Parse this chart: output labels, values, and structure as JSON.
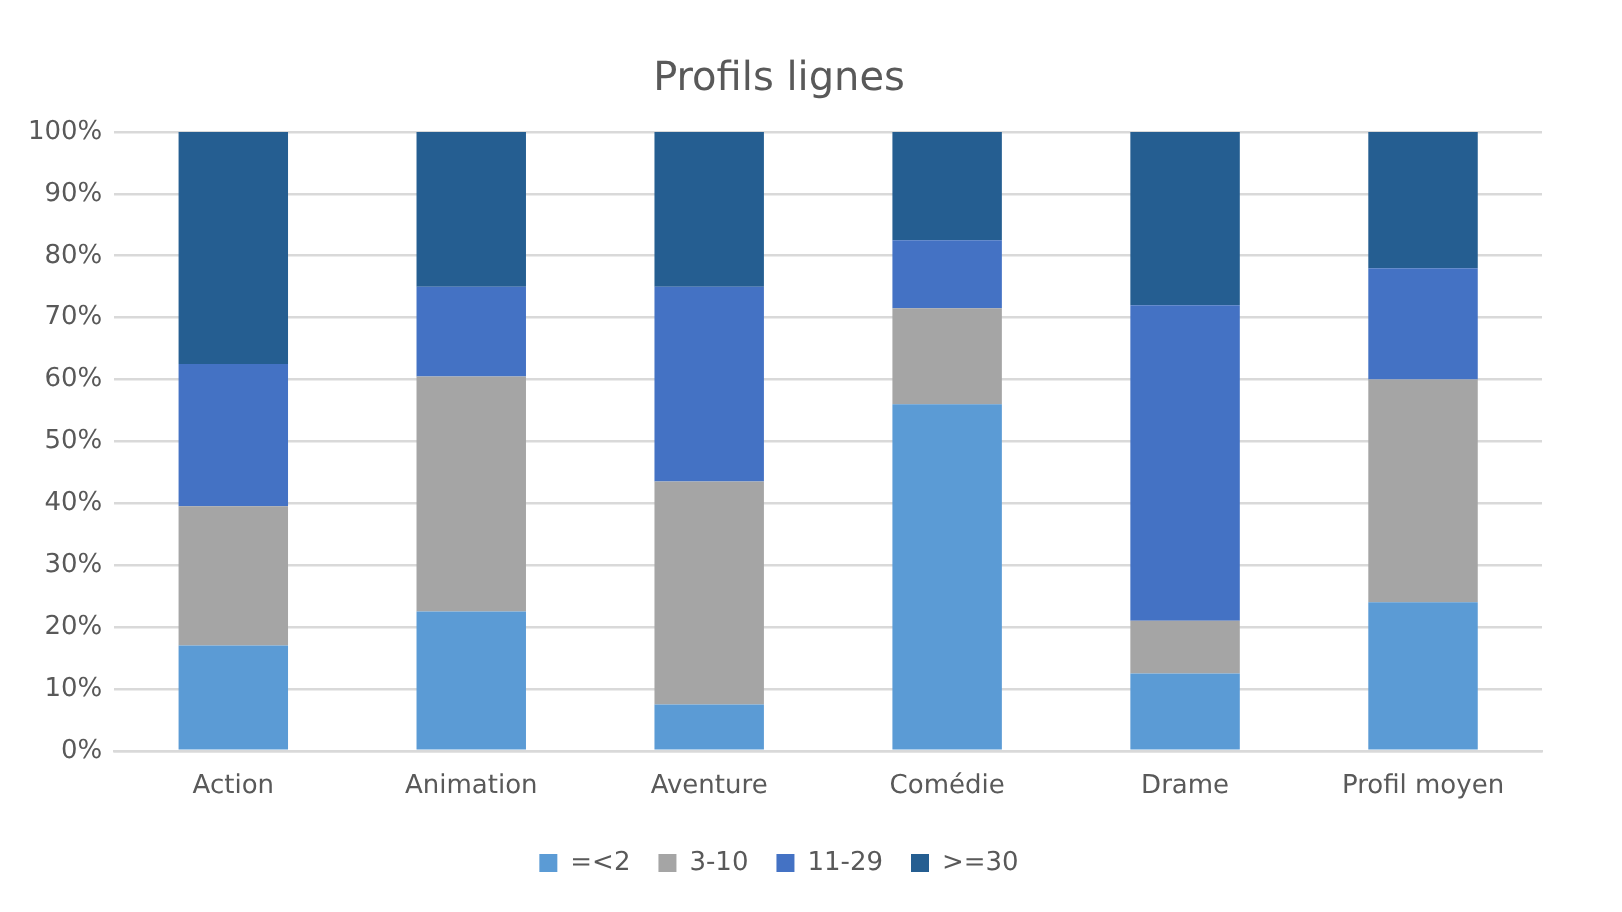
{
  "chart_data": {
    "type": "bar",
    "title": "Profils lignes",
    "stacked": true,
    "categories": [
      "Action",
      "Animation",
      "Aventure",
      "Comédie",
      "Drame",
      "Profil moyen"
    ],
    "series": [
      {
        "name": "=<2",
        "color": "#5b9bd5",
        "values": [
          17,
          22.5,
          7.5,
          56,
          12.5,
          24
        ]
      },
      {
        "name": "3-10",
        "color": "#a5a5a5",
        "values": [
          22.5,
          38,
          36,
          15.5,
          8.5,
          36
        ]
      },
      {
        "name": "11-29",
        "color": "#4472c4",
        "values": [
          23,
          14.5,
          31.5,
          11,
          51,
          18
        ]
      },
      {
        "name": ">=30",
        "color": "#255e91",
        "values": [
          37.5,
          25,
          25,
          17.5,
          28,
          22
        ]
      }
    ],
    "ylim": [
      0,
      100
    ],
    "yticks": [
      {
        "value": 0,
        "label": "0%"
      },
      {
        "value": 10,
        "label": "10%"
      },
      {
        "value": 20,
        "label": "20%"
      },
      {
        "value": 30,
        "label": "30%"
      },
      {
        "value": 40,
        "label": "40%"
      },
      {
        "value": 50,
        "label": "50%"
      },
      {
        "value": 60,
        "label": "60%"
      },
      {
        "value": 70,
        "label": "70%"
      },
      {
        "value": 80,
        "label": "80%"
      },
      {
        "value": 90,
        "label": "90%"
      },
      {
        "value": 100,
        "label": "100%"
      }
    ],
    "grid": "y",
    "legend": "bottom"
  }
}
